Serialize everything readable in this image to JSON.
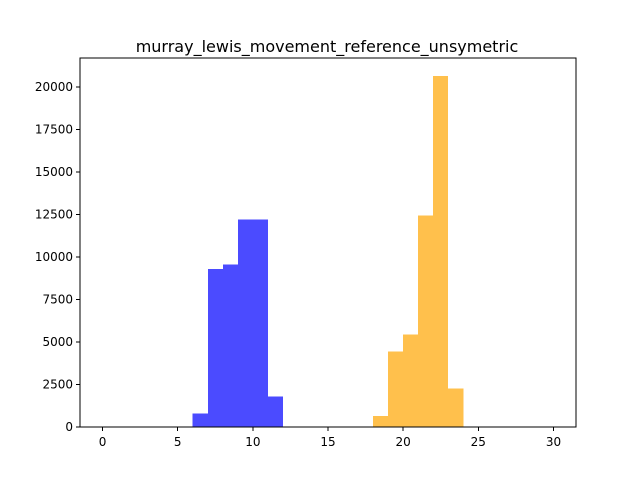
{
  "chart_data": {
    "type": "bar",
    "title": "murray_lewis_movement_reference_unsymetric",
    "xlabel": "",
    "ylabel": "",
    "xlim": [
      -1.5,
      31.5
    ],
    "ylim": [
      0,
      21700
    ],
    "x_ticks": [
      0,
      5,
      10,
      15,
      20,
      25,
      30
    ],
    "y_ticks": [
      0,
      2500,
      5000,
      7500,
      10000,
      12500,
      15000,
      17500,
      20000
    ],
    "grid": false,
    "series": [
      {
        "color": "#4b4bff",
        "bins": [
          {
            "x0": 6,
            "x1": 7,
            "value": 800
          },
          {
            "x0": 7,
            "x1": 8,
            "value": 9300
          },
          {
            "x0": 8,
            "x1": 9,
            "value": 9550
          },
          {
            "x0": 9,
            "x1": 10,
            "value": 12200
          },
          {
            "x0": 10,
            "x1": 11,
            "value": 12200
          },
          {
            "x0": 11,
            "x1": 12,
            "value": 1800
          }
        ]
      },
      {
        "color": "#ffc04c",
        "bins": [
          {
            "x0": 18,
            "x1": 19,
            "value": 650
          },
          {
            "x0": 19,
            "x1": 20,
            "value": 4450
          },
          {
            "x0": 20,
            "x1": 21,
            "value": 5450
          },
          {
            "x0": 21,
            "x1": 22,
            "value": 12450
          },
          {
            "x0": 22,
            "x1": 23,
            "value": 20650
          },
          {
            "x0": 23,
            "x1": 24,
            "value": 2250
          }
        ]
      }
    ]
  }
}
